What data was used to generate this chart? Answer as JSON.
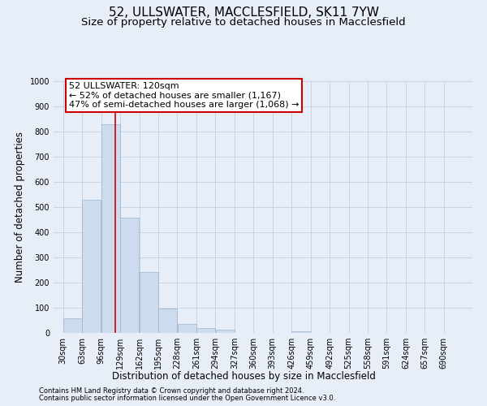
{
  "title": "52, ULLSWATER, MACCLESFIELD, SK11 7YW",
  "subtitle": "Size of property relative to detached houses in Macclesfield",
  "xlabel": "Distribution of detached houses by size in Macclesfield",
  "ylabel": "Number of detached properties",
  "footnote1": "Contains HM Land Registry data © Crown copyright and database right 2024.",
  "footnote2": "Contains public sector information licensed under the Open Government Licence v3.0.",
  "bin_labels": [
    "30sqm",
    "63sqm",
    "96sqm",
    "129sqm",
    "162sqm",
    "195sqm",
    "228sqm",
    "261sqm",
    "294sqm",
    "327sqm",
    "360sqm",
    "393sqm",
    "426sqm",
    "459sqm",
    "492sqm",
    "525sqm",
    "558sqm",
    "591sqm",
    "624sqm",
    "657sqm",
    "690sqm"
  ],
  "bin_edges": [
    30,
    63,
    96,
    129,
    162,
    195,
    228,
    261,
    294,
    327,
    360,
    393,
    426,
    459,
    492,
    525,
    558,
    591,
    624,
    657,
    690,
    723
  ],
  "bar_heights": [
    57,
    530,
    828,
    458,
    242,
    97,
    35,
    18,
    12,
    0,
    0,
    0,
    8,
    0,
    0,
    0,
    0,
    0,
    0,
    0,
    0
  ],
  "bar_color": "#ccdcee",
  "bar_edge_color": "#9ab4cc",
  "property_sqm": 120,
  "red_line_color": "#cc0000",
  "annotation_line1": "52 ULLSWATER: 120sqm",
  "annotation_line2": "← 52% of detached houses are smaller (1,167)",
  "annotation_line3": "47% of semi-detached houses are larger (1,068) →",
  "annotation_box_color": "#ffffff",
  "annotation_box_edge_color": "#cc0000",
  "ylim": [
    0,
    1000
  ],
  "yticks": [
    0,
    100,
    200,
    300,
    400,
    500,
    600,
    700,
    800,
    900,
    1000
  ],
  "grid_color": "#c8d4e4",
  "background_color": "#e8eef8",
  "title_fontsize": 11,
  "subtitle_fontsize": 9.5,
  "axis_label_fontsize": 8.5,
  "tick_fontsize": 7,
  "annotation_fontsize": 8,
  "footnote_fontsize": 6
}
